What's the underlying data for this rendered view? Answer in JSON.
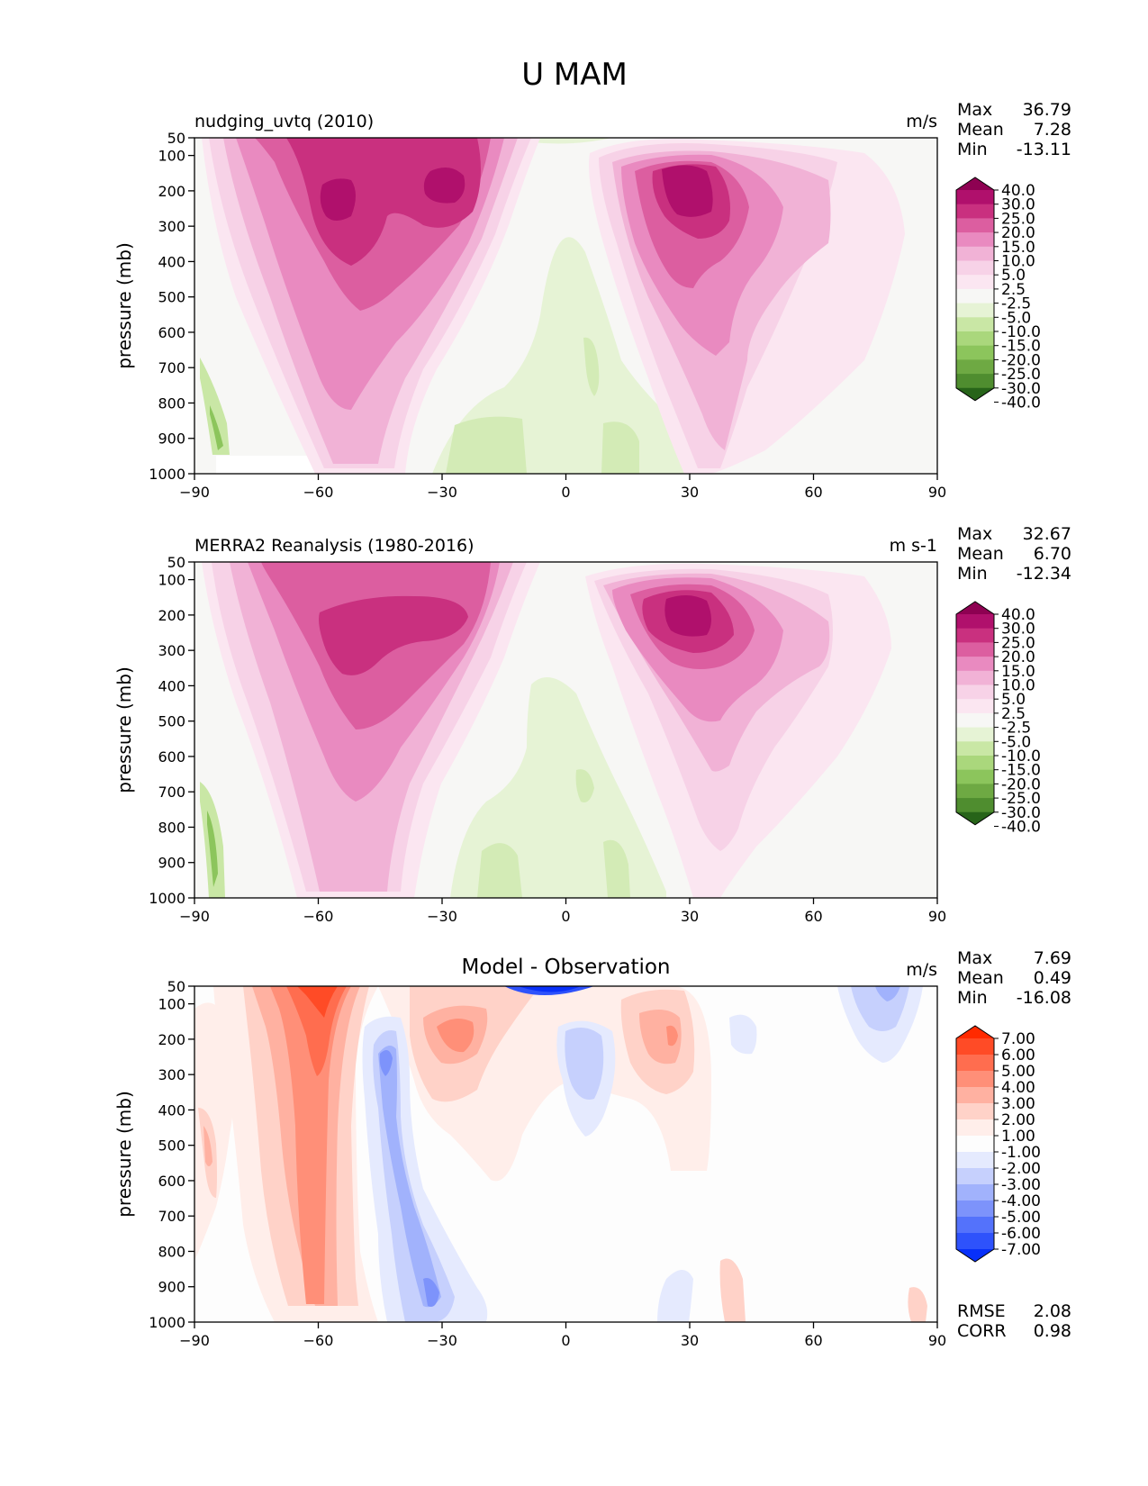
{
  "figure": {
    "title": "U MAM"
  },
  "chart_data": [
    {
      "type": "heatmap",
      "panel": "model",
      "title_left": "nudging_uvtq (2010)",
      "units": "m/s",
      "ylabel": "pressure (mb)",
      "xlabel": "",
      "x_ticks": [
        "−90",
        "−60",
        "−30",
        "0",
        "30",
        "60",
        "90"
      ],
      "y_ticks": [
        "50",
        "100",
        "200",
        "300",
        "400",
        "500",
        "600",
        "700",
        "800",
        "900",
        "1000"
      ],
      "xlim": [
        -90,
        90
      ],
      "ylim": [
        1000,
        50
      ],
      "stats": [
        {
          "label": "Max",
          "value": "36.79"
        },
        {
          "label": "Mean",
          "value": "7.28"
        },
        {
          "label": "Min",
          "value": "-13.11"
        }
      ],
      "colorbar": {
        "labels": [
          "40.0",
          "30.0",
          "25.0",
          "20.0",
          "15.0",
          "10.0",
          "5.0",
          "2.5",
          "-2.5",
          "-5.0",
          "-10.0",
          "-15.0",
          "-20.0",
          "-25.0",
          "-30.0",
          "-40.0"
        ],
        "colors": [
          "#8e0152",
          "#b0106c",
          "#c9307f",
          "#dc5ea0",
          "#e98ac0",
          "#f1b2d6",
          "#f7d2e7",
          "#fbe6f1",
          "#f7f7f5",
          "#e6f3d5",
          "#c9e7a5",
          "#aad77c",
          "#8cc55c",
          "#6ea943",
          "#4f8d2f",
          "#276419"
        ]
      },
      "jets": [
        {
          "lat": -52,
          "p": 200,
          "speed": 36.79
        },
        {
          "lat": -33,
          "p": 150,
          "speed": 32
        },
        {
          "lat": 30,
          "p": 200,
          "speed": 34
        }
      ]
    },
    {
      "type": "heatmap",
      "panel": "observation",
      "title_left": "MERRA2 Reanalysis (1980-2016)",
      "units": "m s-1",
      "ylabel": "pressure (mb)",
      "xlabel": "",
      "x_ticks": [
        "−90",
        "−60",
        "−30",
        "0",
        "30",
        "60",
        "90"
      ],
      "y_ticks": [
        "50",
        "100",
        "200",
        "300",
        "400",
        "500",
        "600",
        "700",
        "800",
        "900",
        "1000"
      ],
      "xlim": [
        -90,
        90
      ],
      "ylim": [
        1000,
        50
      ],
      "stats": [
        {
          "label": "Max",
          "value": "32.67"
        },
        {
          "label": "Mean",
          "value": "6.70"
        },
        {
          "label": "Min",
          "value": "-12.34"
        }
      ],
      "colorbar": {
        "labels": [
          "40.0",
          "30.0",
          "25.0",
          "20.0",
          "15.0",
          "10.0",
          "5.0",
          "2.5",
          "-2.5",
          "-5.0",
          "-10.0",
          "-15.0",
          "-20.0",
          "-25.0",
          "-30.0",
          "-40.0"
        ],
        "colors": [
          "#8e0152",
          "#b0106c",
          "#c9307f",
          "#dc5ea0",
          "#e98ac0",
          "#f1b2d6",
          "#f7d2e7",
          "#fbe6f1",
          "#f7f7f5",
          "#e6f3d5",
          "#c9e7a5",
          "#aad77c",
          "#8cc55c",
          "#6ea943",
          "#4f8d2f",
          "#276419"
        ]
      },
      "jets": [
        {
          "lat": -50,
          "p": 250,
          "speed": 30
        },
        {
          "lat": 30,
          "p": 200,
          "speed": 32.67
        }
      ]
    },
    {
      "type": "heatmap",
      "panel": "difference",
      "title_center": "Model - Observation",
      "units": "m/s",
      "ylabel": "pressure (mb)",
      "xlabel": "",
      "x_ticks": [
        "−90",
        "−60",
        "−30",
        "0",
        "30",
        "60",
        "90"
      ],
      "y_ticks": [
        "50",
        "100",
        "200",
        "300",
        "400",
        "500",
        "600",
        "700",
        "800",
        "900",
        "1000"
      ],
      "xlim": [
        -90,
        90
      ],
      "ylim": [
        1000,
        50
      ],
      "stats": [
        {
          "label": "Max",
          "value": "7.69"
        },
        {
          "label": "Mean",
          "value": "0.49"
        },
        {
          "label": "Min",
          "value": "-16.08"
        }
      ],
      "extra_stats": [
        {
          "label": "RMSE",
          "value": "2.08"
        },
        {
          "label": "CORR",
          "value": "0.98"
        }
      ],
      "colorbar": {
        "labels": [
          "7.00",
          "6.00",
          "5.00",
          "4.00",
          "3.00",
          "2.00",
          "1.00",
          "-1.00",
          "-2.00",
          "-3.00",
          "-4.00",
          "-5.00",
          "-6.00",
          "-7.00"
        ],
        "colors": [
          "#ff2a00",
          "#ff4b26",
          "#ff6d4f",
          "#ff8f78",
          "#ffb1a1",
          "#ffd2c8",
          "#ffeeea",
          "#fdfdfd",
          "#e5eafe",
          "#c6d0fd",
          "#a1b2fc",
          "#7d93fb",
          "#5472fb",
          "#2e52fb",
          "#0830f9"
        ]
      }
    }
  ]
}
